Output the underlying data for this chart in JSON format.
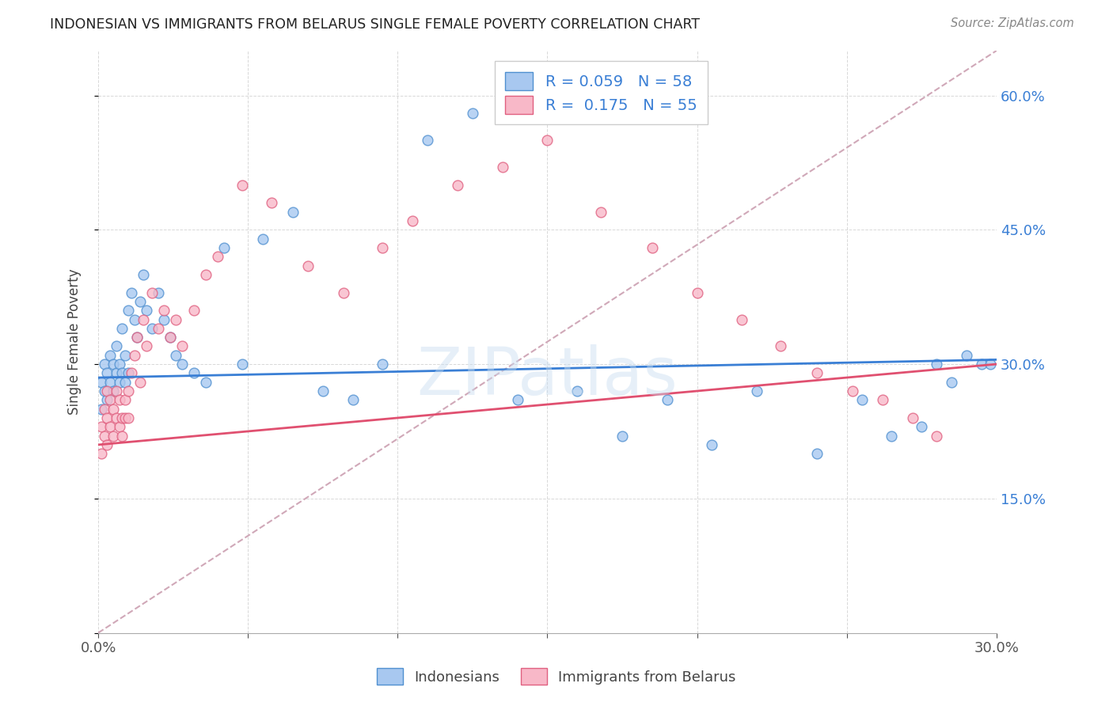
{
  "title": "INDONESIAN VS IMMIGRANTS FROM BELARUS SINGLE FEMALE POVERTY CORRELATION CHART",
  "source": "Source: ZipAtlas.com",
  "ylabel": "Single Female Poverty",
  "xlim": [
    0.0,
    0.3
  ],
  "ylim": [
    0.0,
    0.65
  ],
  "xticks": [
    0.0,
    0.05,
    0.1,
    0.15,
    0.2,
    0.25,
    0.3
  ],
  "xtick_labels": [
    "0.0%",
    "",
    "",
    "",
    "",
    "",
    "30.0%"
  ],
  "yticks": [
    0.0,
    0.15,
    0.3,
    0.45,
    0.6
  ],
  "ytick_labels_right": [
    "",
    "15.0%",
    "30.0%",
    "45.0%",
    "60.0%"
  ],
  "r_indonesian": 0.059,
  "n_indonesian": 58,
  "r_belarus": 0.175,
  "n_belarus": 55,
  "color_indonesian": "#a8c8f0",
  "color_belarus": "#f8b8c8",
  "edge_indonesian": "#5090d0",
  "edge_belarus": "#e06080",
  "trendline_indonesian_color": "#3a7fd5",
  "trendline_belarus_color": "#e05070",
  "diagonal_color": "#d0a8b8",
  "legend_label_indonesian": "Indonesians",
  "legend_label_belarus": "Immigrants from Belarus",
  "indonesian_x": [
    0.001,
    0.001,
    0.002,
    0.002,
    0.003,
    0.003,
    0.004,
    0.004,
    0.005,
    0.005,
    0.006,
    0.006,
    0.007,
    0.007,
    0.008,
    0.008,
    0.009,
    0.009,
    0.01,
    0.01,
    0.011,
    0.012,
    0.013,
    0.014,
    0.015,
    0.016,
    0.018,
    0.02,
    0.022,
    0.024,
    0.026,
    0.028,
    0.032,
    0.036,
    0.042,
    0.048,
    0.055,
    0.065,
    0.075,
    0.085,
    0.095,
    0.11,
    0.125,
    0.14,
    0.16,
    0.175,
    0.19,
    0.205,
    0.22,
    0.24,
    0.255,
    0.265,
    0.275,
    0.28,
    0.285,
    0.29,
    0.295,
    0.298
  ],
  "indonesian_y": [
    0.28,
    0.25,
    0.3,
    0.27,
    0.29,
    0.26,
    0.31,
    0.28,
    0.27,
    0.3,
    0.29,
    0.32,
    0.3,
    0.28,
    0.34,
    0.29,
    0.31,
    0.28,
    0.36,
    0.29,
    0.38,
    0.35,
    0.33,
    0.37,
    0.4,
    0.36,
    0.34,
    0.38,
    0.35,
    0.33,
    0.31,
    0.3,
    0.29,
    0.28,
    0.43,
    0.3,
    0.44,
    0.47,
    0.27,
    0.26,
    0.3,
    0.55,
    0.58,
    0.26,
    0.27,
    0.22,
    0.26,
    0.21,
    0.27,
    0.2,
    0.26,
    0.22,
    0.23,
    0.3,
    0.28,
    0.31,
    0.3,
    0.3
  ],
  "belarus_x": [
    0.001,
    0.001,
    0.002,
    0.002,
    0.003,
    0.003,
    0.003,
    0.004,
    0.004,
    0.005,
    0.005,
    0.006,
    0.006,
    0.007,
    0.007,
    0.008,
    0.008,
    0.009,
    0.009,
    0.01,
    0.01,
    0.011,
    0.012,
    0.013,
    0.014,
    0.015,
    0.016,
    0.018,
    0.02,
    0.022,
    0.024,
    0.026,
    0.028,
    0.032,
    0.036,
    0.04,
    0.048,
    0.058,
    0.07,
    0.082,
    0.095,
    0.105,
    0.12,
    0.135,
    0.15,
    0.168,
    0.185,
    0.2,
    0.215,
    0.228,
    0.24,
    0.252,
    0.262,
    0.272,
    0.28
  ],
  "belarus_y": [
    0.23,
    0.2,
    0.25,
    0.22,
    0.27,
    0.24,
    0.21,
    0.26,
    0.23,
    0.25,
    0.22,
    0.24,
    0.27,
    0.23,
    0.26,
    0.24,
    0.22,
    0.26,
    0.24,
    0.27,
    0.24,
    0.29,
    0.31,
    0.33,
    0.28,
    0.35,
    0.32,
    0.38,
    0.34,
    0.36,
    0.33,
    0.35,
    0.32,
    0.36,
    0.4,
    0.42,
    0.5,
    0.48,
    0.41,
    0.38,
    0.43,
    0.46,
    0.5,
    0.52,
    0.55,
    0.47,
    0.43,
    0.38,
    0.35,
    0.32,
    0.29,
    0.27,
    0.26,
    0.24,
    0.22
  ],
  "watermark": "ZIPatlas",
  "background_color": "#ffffff",
  "grid_color": "#d8d8d8"
}
